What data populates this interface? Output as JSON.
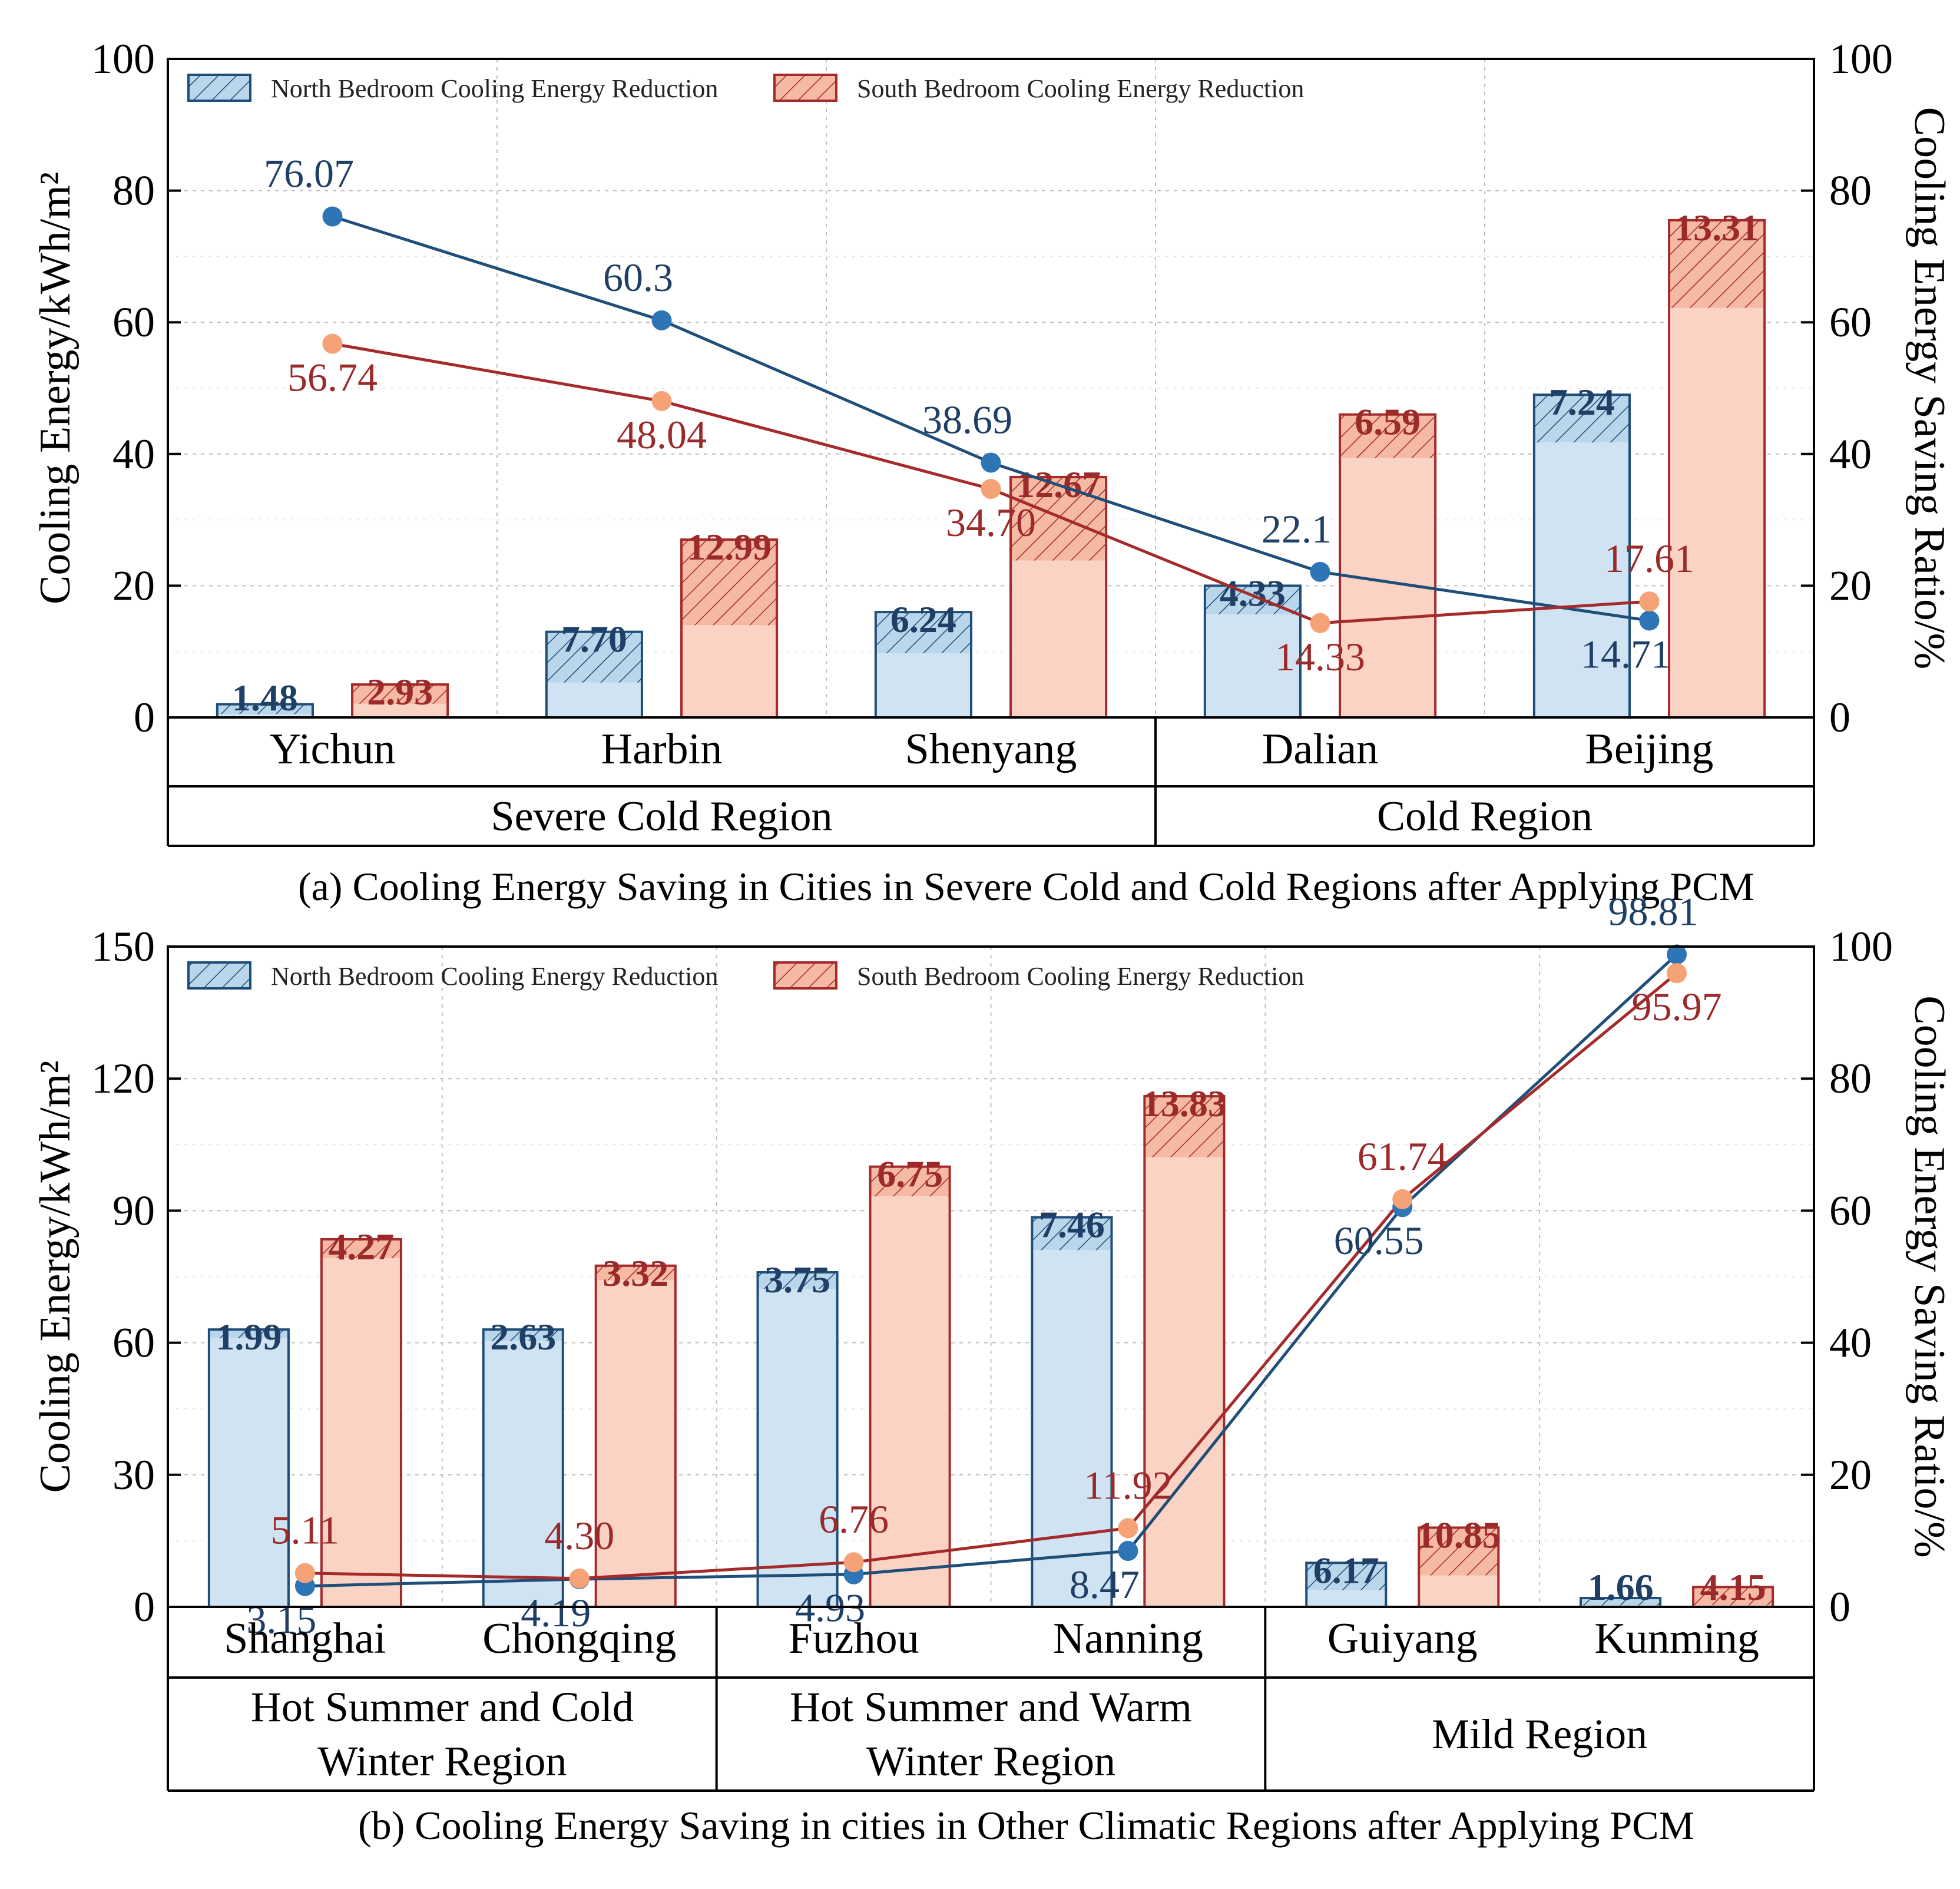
{
  "colors": {
    "north_stroke": "#1f4e79",
    "north_fill": "#cfe3f2",
    "north_dot": "#2e75b6",
    "north_text": "#1f3f66",
    "south_stroke": "#a52a2a",
    "south_fill": "#fbd3c4",
    "south_dot": "#f4a276",
    "south_text": "#9b2a2a",
    "grid": "#bfbfbf",
    "axis": "#000000"
  },
  "chart_data": [
    {
      "type": "bar",
      "caption": "(a) Cooling Energy Saving in Cities in Severe Cold and Cold Regions after Applying PCM",
      "ylabel": "Cooling Energy/kWh/m²",
      "ylabel2": "Cooling Energy Saving Ratio/%",
      "ylim": [
        0,
        100
      ],
      "yticks": [
        0,
        20,
        40,
        60,
        80,
        100
      ],
      "ylim2": [
        0,
        100
      ],
      "yticks2": [
        0,
        20,
        40,
        60,
        80,
        100
      ],
      "grid": true,
      "legend": {
        "position": "top-left",
        "entries": [
          "North Bedroom Cooling Energy Reduction",
          "South Bedroom Cooling Energy Reduction"
        ]
      },
      "categories": [
        "Yichun",
        "Harbin",
        "Shenyang",
        "Dalian",
        "Beijing"
      ],
      "groups": [
        {
          "name": "Severe Cold Region",
          "count": 3
        },
        {
          "name": "Cold Region",
          "count": 2
        }
      ],
      "series": [
        {
          "name": "North Bedroom Cooling Energy",
          "axis": "left",
          "totals": [
            2,
            13,
            16,
            20,
            49
          ],
          "reductions": [
            1.48,
            7.7,
            6.24,
            4.33,
            7.24
          ],
          "reduction_labels": [
            "1.48",
            "7.70",
            "6.24",
            "4.33",
            "7.24"
          ]
        },
        {
          "name": "South Bedroom Cooling Energy",
          "axis": "left",
          "totals": [
            5,
            27,
            36.5,
            46,
            75.5
          ],
          "reductions": [
            2.93,
            12.99,
            12.67,
            6.59,
            13.31
          ],
          "reduction_labels": [
            "2.93",
            "12.99",
            "12.67",
            "6.59",
            "13.31"
          ]
        },
        {
          "name": "North Bedroom Cooling Energy Saving Ratio",
          "axis": "right",
          "type": "line",
          "values": [
            76.07,
            60.3,
            38.69,
            22.1,
            14.71
          ],
          "labels": [
            "76.07",
            "60.3",
            "38.69",
            "22.1",
            "14.71"
          ]
        },
        {
          "name": "South Bedroom Cooling Energy Saving Ratio",
          "axis": "right",
          "type": "line",
          "values": [
            56.74,
            48.04,
            34.7,
            14.33,
            17.61
          ],
          "labels": [
            "56.74",
            "48.04",
            "34.70",
            "14.33",
            "17.61"
          ]
        }
      ]
    },
    {
      "type": "bar",
      "caption": "(b) Cooling Energy Saving in cities in Other Climatic Regions after Applying PCM",
      "ylabel": "Cooling Energy/kWh/m²",
      "ylabel2": "Cooling Energy Saving Ratio/%",
      "ylim": [
        0,
        150
      ],
      "yticks": [
        0,
        30,
        60,
        90,
        120,
        150
      ],
      "ylim2": [
        0,
        100
      ],
      "yticks2": [
        0,
        20,
        40,
        60,
        80,
        100
      ],
      "grid": true,
      "legend": {
        "position": "top-left",
        "entries": [
          "North Bedroom Cooling Energy Reduction",
          "South Bedroom Cooling Energy Reduction"
        ]
      },
      "categories": [
        "Shanghai",
        "Chongqing",
        "Fuzhou",
        "Nanning",
        "Guiyang",
        "Kunming"
      ],
      "groups": [
        {
          "name": "Hot Summer and Cold Winter Region",
          "lines": [
            "Hot Summer and Cold",
            "Winter Region"
          ],
          "count": 2
        },
        {
          "name": "Hot Summer and Warm Winter Region",
          "lines": [
            "Hot Summer and Warm",
            "Winter Region"
          ],
          "count": 2
        },
        {
          "name": "Mild Region",
          "lines": [
            "Mild Region"
          ],
          "count": 2
        }
      ],
      "series": [
        {
          "name": "North Bedroom Cooling Energy",
          "axis": "left",
          "totals": [
            63,
            63,
            76,
            88.5,
            10,
            2
          ],
          "reductions": [
            1.99,
            2.63,
            3.75,
            7.46,
            6.17,
            1.66
          ],
          "reduction_labels": [
            "1.99",
            "2.63",
            "3.75",
            "7.46",
            "6.17",
            "1.66"
          ]
        },
        {
          "name": "South Bedroom Cooling Energy",
          "axis": "left",
          "totals": [
            83.5,
            77.5,
            100,
            116,
            18,
            4.5
          ],
          "reductions": [
            4.27,
            3.32,
            6.75,
            13.83,
            10.85,
            4.15
          ],
          "reduction_labels": [
            "4.27",
            "3.32",
            "6.75",
            "13.83",
            "10.85",
            "4.15"
          ]
        },
        {
          "name": "North Bedroom Cooling Energy Saving Ratio",
          "axis": "right",
          "type": "line",
          "values": [
            3.15,
            4.19,
            4.93,
            8.47,
            60.55,
            98.81
          ],
          "labels": [
            "3.15",
            "4.19",
            "4.93",
            "8.47",
            "60.55",
            "98.81"
          ]
        },
        {
          "name": "South Bedroom Cooling Energy Saving Ratio",
          "axis": "right",
          "type": "line",
          "values": [
            5.11,
            4.3,
            6.76,
            11.92,
            61.74,
            95.97
          ],
          "labels": [
            "5.11",
            "4.30",
            "6.76",
            "11.92",
            "61.74",
            "95.97"
          ]
        }
      ]
    }
  ]
}
